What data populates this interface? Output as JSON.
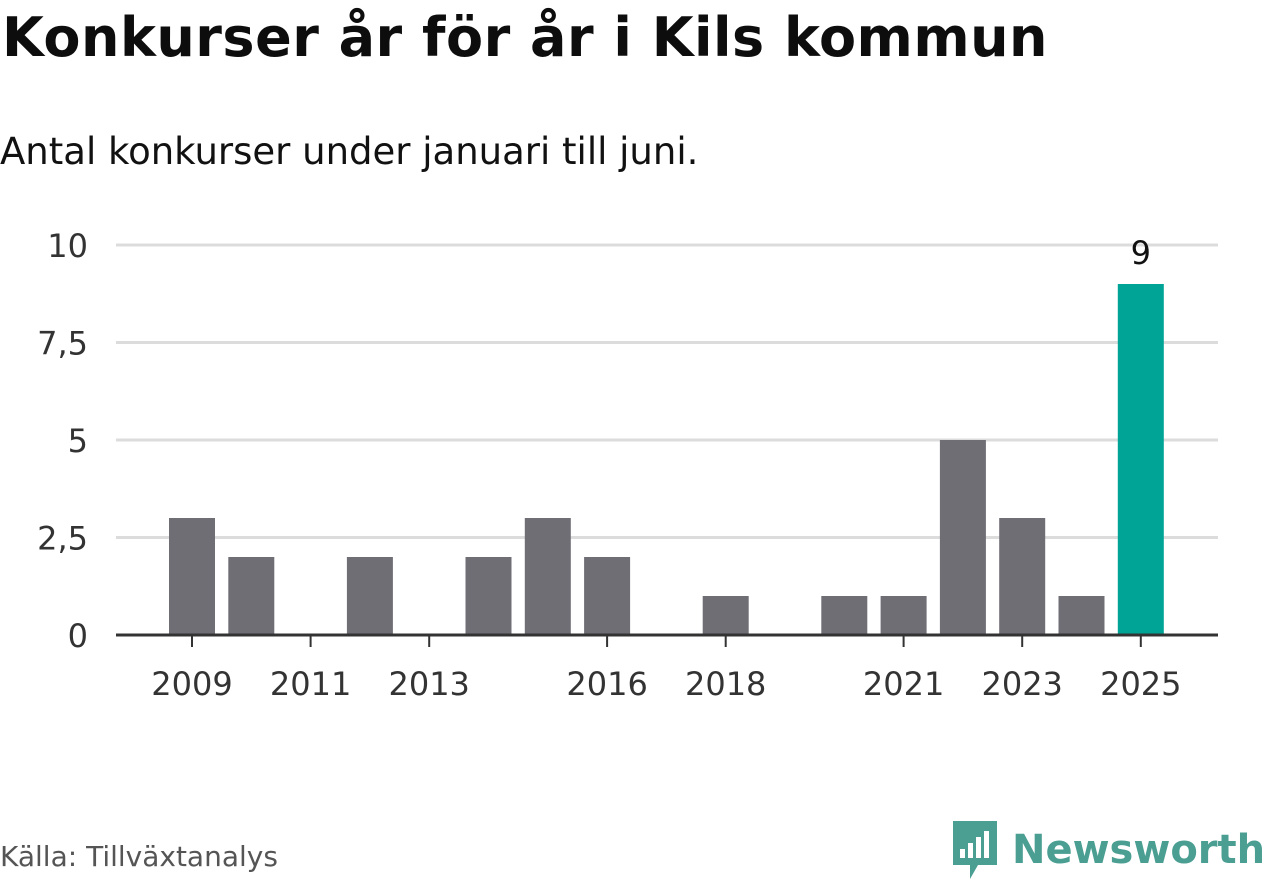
{
  "title": "Konkurser år för år i Kils kommun",
  "subtitle": "Antal konkurser under januari till juni.",
  "source": "Källa: Tillväxtanalys",
  "brand": {
    "name": "Newsworthy",
    "icon": "newsworthy-logo-icon",
    "color": "#4a9e92"
  },
  "colors": {
    "bar": "#6f6e75",
    "highlight": "#00a497",
    "grid": "#dcdcdc",
    "axis": "#333333"
  },
  "chart_data": {
    "type": "bar",
    "categories": [
      "2009",
      "2010",
      "2011",
      "2012",
      "2013",
      "2014",
      "2015",
      "2016",
      "2017",
      "2018",
      "2019",
      "2020",
      "2021",
      "2022",
      "2023",
      "2024",
      "2025"
    ],
    "values": [
      3,
      2,
      0,
      2,
      0,
      2,
      3,
      2,
      0,
      1,
      0,
      1,
      1,
      5,
      3,
      1,
      9
    ],
    "highlight_category": "2025",
    "data_labels": [
      {
        "category": "2025",
        "text": "9"
      }
    ],
    "x_tick_labels": [
      "2009",
      "2011",
      "2013",
      "2016",
      "2018",
      "2021",
      "2023",
      "2025"
    ],
    "y_ticks": [
      0,
      2.5,
      5,
      7.5,
      10
    ],
    "y_tick_labels": [
      "0",
      "2,5",
      "5",
      "7,5",
      "10"
    ],
    "ylim": [
      0,
      10
    ],
    "grid": true,
    "legend": "none"
  }
}
